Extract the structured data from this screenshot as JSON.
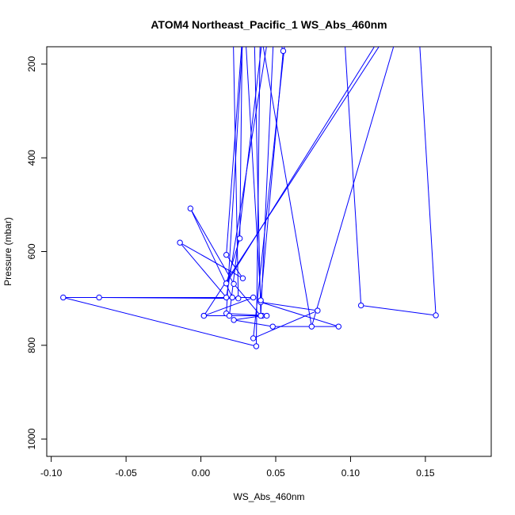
{
  "chart_data": {
    "type": "line",
    "title": "ATOM4 Northeast_Pacific_1 WS_Abs_460nm",
    "xlabel": "WS_Abs_460nm",
    "ylabel": "Pressure (mbar)",
    "xlim": [
      -0.103,
      0.194
    ],
    "ylim": [
      1037,
      163
    ],
    "y_reversed": true,
    "grid": false,
    "legend": "none",
    "xticks": [
      -0.1,
      -0.05,
      0.0,
      0.05,
      0.1,
      0.15
    ],
    "xtick_labels": [
      "-0.10",
      "-0.05",
      "0.00",
      "0.05",
      "0.10",
      "0.15"
    ],
    "yticks": [
      200,
      400,
      600,
      800,
      1000
    ],
    "ytick_labels": [
      "200",
      "400",
      "600",
      "800",
      "1000"
    ],
    "series": [
      {
        "color": "#0000ff",
        "marker": "open-circle",
        "points": [
          [
            0.021,
            40
          ],
          [
            0.025,
            700
          ],
          [
            -0.068,
            698
          ],
          [
            0.035,
            698
          ],
          [
            0.002,
            737
          ],
          [
            0.041,
            737
          ],
          [
            0.022,
            746
          ],
          [
            0.048,
            760
          ],
          [
            0.092,
            760
          ],
          [
            0.04,
            708
          ],
          [
            0.078,
            726
          ],
          [
            0.035,
            785
          ],
          [
            0.06,
            40
          ],
          [
            0.094,
            40
          ],
          [
            0.107,
            715
          ],
          [
            0.157,
            736
          ],
          [
            0.144,
            40
          ],
          [
            0.002,
            737
          ],
          [
            0.044,
            737
          ],
          [
            0.017,
            732
          ],
          [
            0.03,
            40
          ],
          [
            0.017,
            607
          ],
          [
            0.028,
            657
          ],
          [
            -0.014,
            581
          ],
          [
            0.017,
            698
          ],
          [
            0.05,
            40
          ],
          [
            0.04,
            737
          ],
          [
            0.022,
            669
          ],
          [
            -0.007,
            508
          ],
          [
            0.021,
            698
          ],
          [
            -0.092,
            698
          ],
          [
            0.037,
            802
          ],
          [
            0.04,
            40
          ],
          [
            0.055,
            172
          ],
          [
            0.04,
            704
          ],
          [
            0.028,
            40
          ],
          [
            0.026,
            572
          ],
          [
            0.017,
            668
          ],
          [
            0.14,
            40
          ],
          [
            0.074,
            760
          ],
          [
            0.035,
            40
          ],
          [
            0.04,
            737
          ],
          [
            0.019,
            737
          ],
          [
            0.045,
            40
          ]
        ]
      }
    ]
  }
}
